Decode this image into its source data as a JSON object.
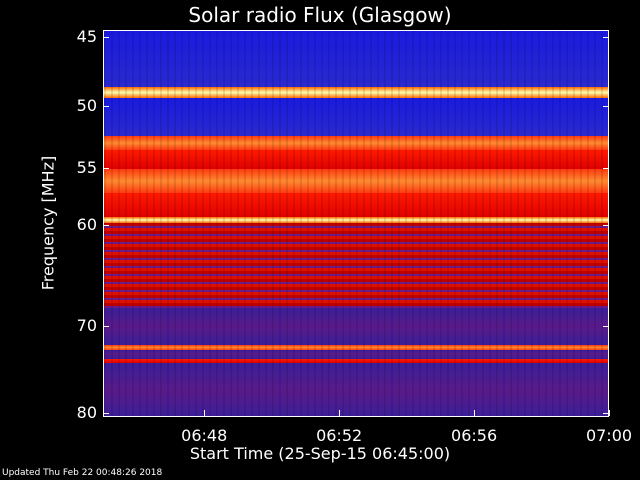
{
  "chart_data": {
    "type": "heatmap",
    "title": "Solar radio Flux (Glasgow)",
    "xlabel": "Start Time (25-Sep-15 06:45:00)",
    "ylabel": "Frequency [MHz]",
    "xticks": [
      "06:48",
      "06:52",
      "06:56",
      "07:00"
    ],
    "yticks": [
      "45",
      "50",
      "55",
      "60",
      "70",
      "80"
    ],
    "xlim": [
      "06:45",
      "07:00"
    ],
    "ylim": [
      45,
      80
    ],
    "yscale": "log",
    "colormap": [
      "#1a0060",
      "#3a1f9a",
      "#1e1ed8",
      "#b00000",
      "#ff2000",
      "#ff7a20",
      "#ffffa0"
    ],
    "bands": [
      {
        "f0": 44.5,
        "f1": 48.5,
        "level": "blue"
      },
      {
        "f0": 48.5,
        "f1": 49.3,
        "level": "peak"
      },
      {
        "f0": 49.3,
        "f1": 52.3,
        "level": "blue"
      },
      {
        "f0": 52.3,
        "f1": 53.4,
        "level": "orange"
      },
      {
        "f0": 53.4,
        "f1": 55.0,
        "level": "red"
      },
      {
        "f0": 55.0,
        "f1": 57.0,
        "level": "orange"
      },
      {
        "f0": 57.0,
        "f1": 59.2,
        "level": "red"
      },
      {
        "f0": 59.2,
        "f1": 59.7,
        "level": "peak"
      },
      {
        "f0": 59.7,
        "f1": 68.0,
        "level": "darkred"
      },
      {
        "f0": 68.0,
        "f1": 72.0,
        "level": "purple"
      },
      {
        "f0": 72.0,
        "f1": 72.5,
        "level": "orange"
      },
      {
        "f0": 72.5,
        "f1": 73.5,
        "level": "purple"
      },
      {
        "f0": 73.5,
        "f1": 74.0,
        "level": "red"
      },
      {
        "f0": 74.0,
        "f1": 80.5,
        "level": "purple"
      }
    ]
  },
  "footer": {
    "updated": "Updated Thu Feb 22 00:48:26 2018"
  }
}
